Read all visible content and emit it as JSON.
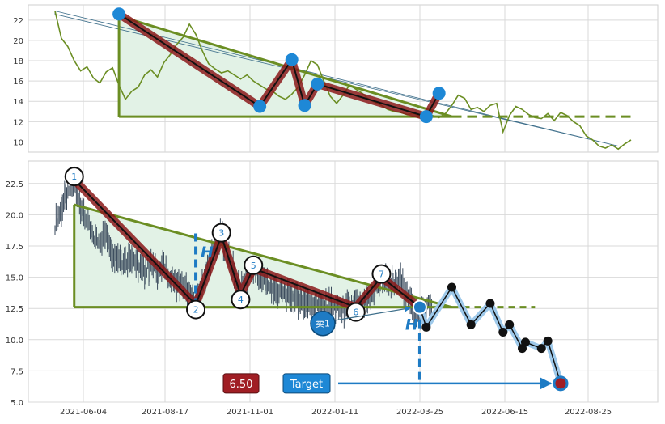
{
  "chart_data": [
    {
      "type": "line",
      "title": "",
      "xlabel": "",
      "ylabel": "",
      "ylim": [
        9,
        23.5
      ],
      "yticks": [
        10,
        12,
        14,
        16,
        18,
        20,
        22
      ],
      "grid": true,
      "colors": {
        "line": "#6b8e23",
        "pivot": "#1e88d6",
        "band": "#8b1a1a",
        "triangle": "#6b8e23",
        "fill": "#e2f2e6"
      },
      "series": [
        {
          "values": [
            22.9,
            20.2,
            19.4,
            18.0,
            17.0,
            17.4,
            16.3,
            15.8,
            16.9,
            17.3,
            15.6,
            14.2,
            15.0,
            15.4,
            16.6,
            17.1,
            16.4,
            17.8,
            18.6,
            19.6,
            20.3,
            21.6,
            20.6,
            19.0,
            17.7,
            17.2,
            16.8,
            17.0,
            16.6,
            16.2,
            16.6,
            16.0,
            15.6,
            15.2,
            15.0,
            14.5,
            14.2,
            14.7,
            15.4,
            16.6,
            18.0,
            17.6,
            16.0,
            14.5,
            13.8,
            14.6,
            15.6,
            15.2,
            14.8,
            14.2,
            13.9,
            13.6,
            13.2,
            13.0,
            12.9,
            12.7,
            12.8,
            12.6,
            12.5,
            12.6,
            12.4,
            12.8,
            13.6,
            14.6,
            14.3,
            13.2,
            13.4,
            13.0,
            13.6,
            13.8,
            11.0,
            12.6,
            13.5,
            13.2,
            12.7,
            12.4,
            12.3,
            12.8,
            12.1,
            12.9,
            12.6,
            12.0,
            11.6,
            10.6,
            10.2,
            9.6,
            9.4,
            9.7,
            9.3,
            9.8,
            10.2
          ]
        }
      ],
      "pivots": [
        {
          "label": "",
          "x": 10,
          "y": 22.6
        },
        {
          "label": "",
          "x": 32,
          "y": 13.5
        },
        {
          "label": "",
          "x": 37,
          "y": 18.1
        },
        {
          "label": "",
          "x": 39,
          "y": 13.6
        },
        {
          "label": "",
          "x": 41,
          "y": 15.7
        },
        {
          "label": "",
          "x": 58,
          "y": 12.5
        },
        {
          "label": "",
          "x": 60,
          "y": 14.8
        }
      ],
      "triangle": {
        "apex_y": 22.4,
        "base_y": 12.5,
        "right_y": 12.5
      },
      "breakout_y": 12.5,
      "channel": {
        "start_y": 22.9,
        "end_y": 9.6
      }
    },
    {
      "type": "candlestick",
      "title": "",
      "xlabel": "",
      "ylabel": "",
      "ylim": [
        5,
        24.3
      ],
      "yticks": [
        5.0,
        7.5,
        10.0,
        12.5,
        15.0,
        17.5,
        20.0,
        22.5
      ],
      "yticklabels": [
        "5.0",
        "7.5",
        "10.0",
        "12.5",
        "15.0",
        "17.5",
        "20.0",
        "22.5"
      ],
      "xticklabels": [
        "2021-06-04",
        "2021-08-17",
        "2021-11-01",
        "2022-01-11",
        "2022-03-25",
        "2022-06-15",
        "2022-08-25"
      ],
      "grid": true,
      "colors": {
        "candle": "#3a4a5c",
        "band": "#8b1a1a",
        "triangle": "#6b8e23",
        "fill": "#e2f2e6",
        "blue": "#1e7bc4",
        "forecast": "#1a1a1a",
        "price_box": "#a01e24",
        "target_box": "#1e88d6"
      },
      "closes": [
        19.2,
        20.5,
        21.8,
        22.8,
        20.6,
        19.4,
        18.2,
        17.8,
        18.6,
        17.0,
        16.6,
        16.2,
        16.8,
        15.8,
        15.4,
        16.0,
        15.6,
        15.8,
        15.0,
        14.6,
        14.2,
        13.6,
        13.0,
        14.5,
        16.0,
        17.4,
        18.3,
        17.0,
        15.3,
        13.9,
        14.8,
        15.7,
        15.2,
        14.6,
        14.0,
        13.8,
        13.6,
        13.4,
        13.2,
        13.0,
        12.8,
        12.9,
        12.6,
        12.7,
        12.6,
        12.4,
        12.5,
        12.6,
        12.8,
        13.0,
        14.2,
        15.0,
        14.6,
        14.3,
        14.8,
        13.6,
        12.4,
        11.9,
        12.6,
        13.0
      ],
      "pivots": [
        {
          "label": "1",
          "x": 3,
          "y": 22.8
        },
        {
          "label": "2",
          "x": 22,
          "y": 12.8
        },
        {
          "label": "3",
          "x": 26,
          "y": 18.3
        },
        {
          "label": "4",
          "x": 29,
          "y": 13.6
        },
        {
          "label": "5",
          "x": 31,
          "y": 15.7
        },
        {
          "label": "6",
          "x": 47,
          "y": 12.6
        },
        {
          "label": "7",
          "x": 51,
          "y": 15.0
        }
      ],
      "triangle": {
        "apex_y": 20.8,
        "base_y": 12.6,
        "right_y": 12.6
      },
      "breakout": {
        "x": 57,
        "y": 12.6
      },
      "forecast": [
        {
          "x": 58,
          "y": 11.0
        },
        {
          "x": 62,
          "y": 14.2
        },
        {
          "x": 65,
          "y": 11.2
        },
        {
          "x": 68,
          "y": 12.9
        },
        {
          "x": 70,
          "y": 10.6
        },
        {
          "x": 71,
          "y": 11.2
        },
        {
          "x": 73,
          "y": 9.3
        },
        {
          "x": 73.5,
          "y": 9.8
        },
        {
          "x": 76,
          "y": 9.3
        },
        {
          "x": 77,
          "y": 9.9
        },
        {
          "x": 79,
          "y": 6.5
        }
      ],
      "h_marker": "H",
      "sell_label": "卖1",
      "price_label": "6.50",
      "target_label": "Target",
      "target_y": 6.5
    }
  ]
}
